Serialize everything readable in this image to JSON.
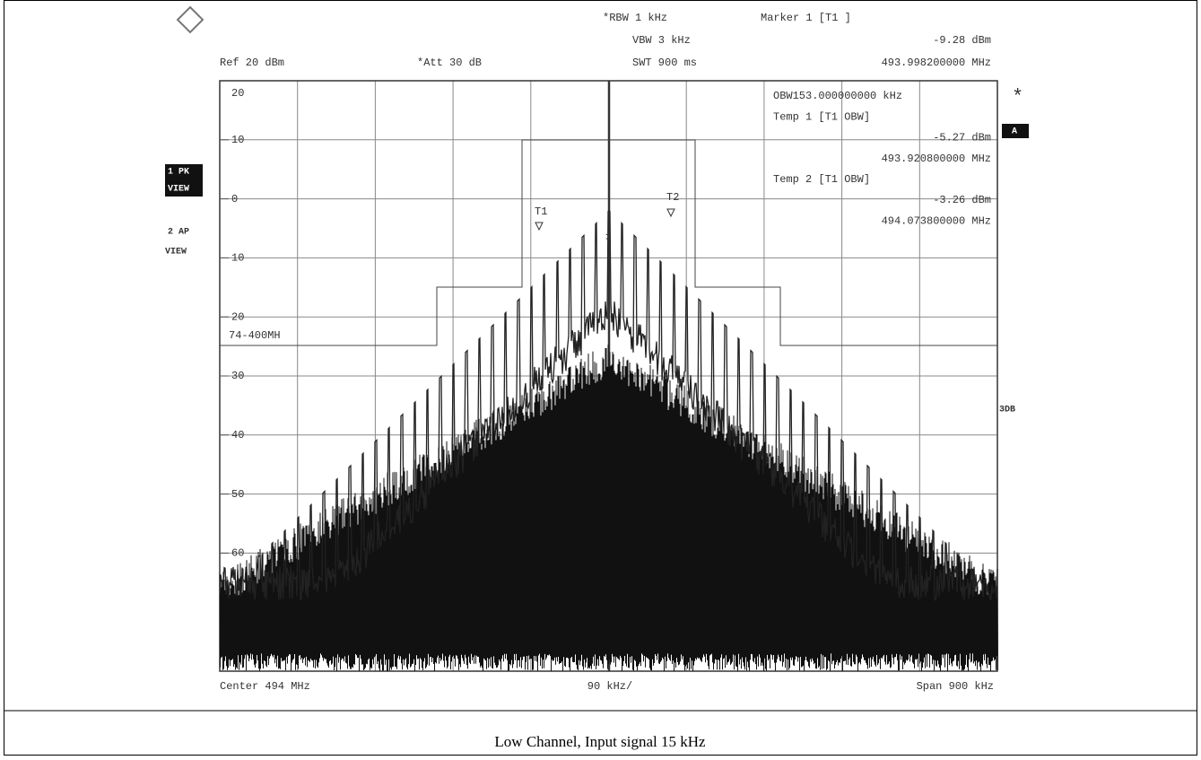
{
  "header": {
    "rbw": "*RBW 1 kHz",
    "vbw": "VBW 3 kHz",
    "swt": "SWT 900 ms",
    "ref": "Ref 20 dBm",
    "att": "*Att 30 dB",
    "marker": "Marker 1 [T1 ]",
    "marker_level": "-9.28 dBm",
    "marker_freq": "493.998200000 MHz"
  },
  "info": [
    "OBW153.000000000 kHz",
    "Temp 1 [T1 OBW]",
    "-5.27 dBm",
    "493.920800000 MHz",
    "Temp 2 [T1 OBW]",
    "-3.26 dBm",
    "494.073800000 MHz"
  ],
  "side": {
    "trace1": "1 PK",
    "view1": "VIEW",
    "trace2": "2 AP",
    "view2": "VIEW",
    "star": "*",
    "a": "A",
    "db": "3DB"
  },
  "y_labels": [
    "20",
    "10",
    "0",
    "10",
    "20",
    "30",
    "40",
    "50",
    "60"
  ],
  "limit_label": "74-400MH",
  "markers": [
    "T1",
    "T2",
    "1"
  ],
  "footer": {
    "center": "Center 494 MHz",
    "div": "90 kHz/",
    "span": "Span 900 kHz"
  },
  "caption": "Low Channel, Input signal 15 kHz"
}
